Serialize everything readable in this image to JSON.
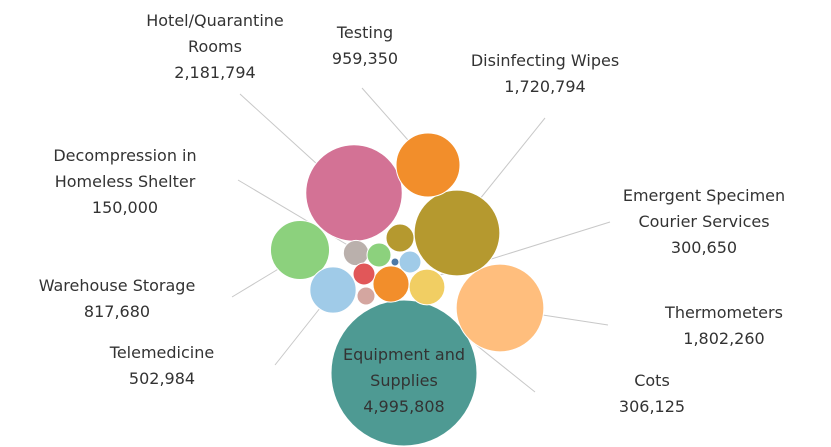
{
  "chart_data": {
    "type": "packed-bubble",
    "categories": [
      "Equipment and Supplies",
      "Hotel/Quarantine Rooms",
      "Thermometers",
      "Disinfecting Wipes",
      "Testing",
      "Warehouse Storage",
      "Telemedicine",
      "Cots",
      "Emergent Specimen Courier Services",
      "Decompression in Homeless Shelter",
      null,
      null,
      null,
      null,
      null,
      null
    ],
    "values": [
      4995808,
      2181794,
      1802260,
      1720794,
      959350,
      817680,
      502984,
      306125,
      300650,
      150000,
      135000,
      184000,
      113000,
      113000,
      76000,
      15000
    ],
    "value_labels": [
      "4,995,808",
      "2,181,794",
      "1,802,260",
      "1,720,794",
      "959,350",
      "817,680",
      "502,984",
      "306,125",
      "300,650",
      "150,000",
      null,
      null,
      null,
      null,
      null,
      null
    ],
    "colors": [
      "#4e9a93",
      "#d37295",
      "#ffbe7d",
      "#b5992f",
      "#f28e2b",
      "#8cd17d",
      "#a0cbe8",
      "#f28e2b",
      "#f1ce63",
      "#bab0ac",
      "#8cd17d",
      "#b5992f",
      "#e15759",
      "#a0cbe8",
      "#d4a6a0",
      "#4e79a7"
    ]
  }
}
